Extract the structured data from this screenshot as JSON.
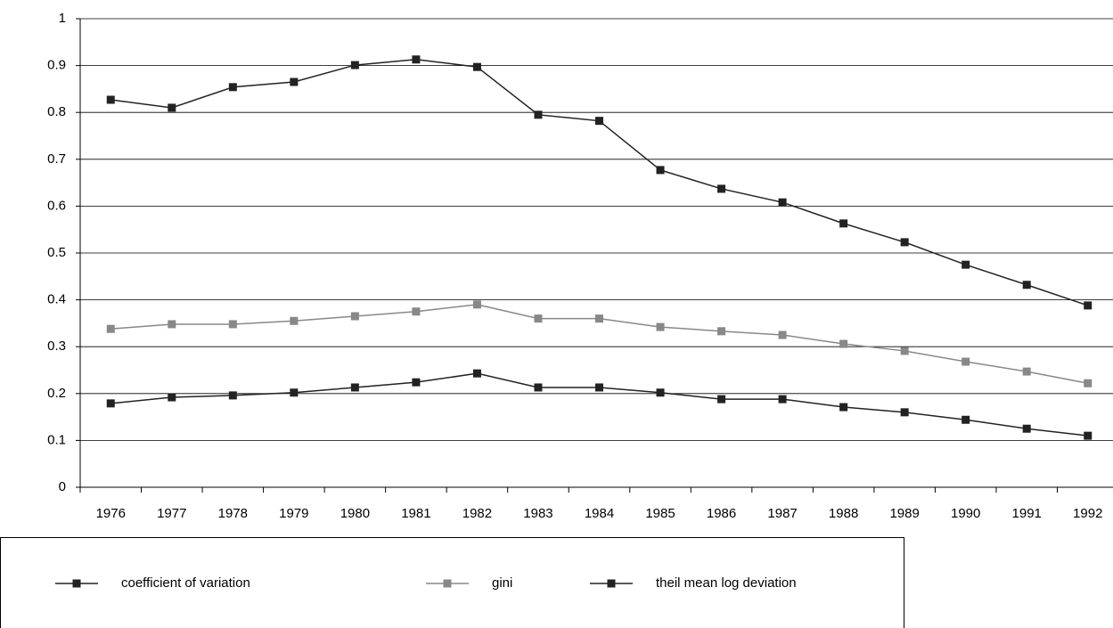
{
  "chart_data": {
    "type": "line",
    "categories": [
      "1976",
      "1977",
      "1978",
      "1979",
      "1980",
      "1981",
      "1982",
      "1983",
      "1984",
      "1985",
      "1986",
      "1987",
      "1988",
      "1989",
      "1990",
      "1991",
      "1992"
    ],
    "series": [
      {
        "name": "coefficient of variation",
        "color": "#222222",
        "values": [
          0.827,
          0.81,
          0.854,
          0.865,
          0.901,
          0.913,
          0.897,
          0.795,
          0.782,
          0.677,
          0.637,
          0.608,
          0.563,
          0.523,
          0.475,
          0.432,
          0.388
        ]
      },
      {
        "name": "gini",
        "color": "#888888",
        "values": [
          0.338,
          0.348,
          0.348,
          0.355,
          0.365,
          0.375,
          0.39,
          0.36,
          0.36,
          0.342,
          0.333,
          0.325,
          0.306,
          0.291,
          0.268,
          0.247,
          0.222
        ]
      },
      {
        "name": "theil mean log deviation",
        "color": "#222222",
        "values": [
          0.179,
          0.192,
          0.196,
          0.202,
          0.213,
          0.224,
          0.243,
          0.213,
          0.213,
          0.202,
          0.188,
          0.188,
          0.171,
          0.16,
          0.144,
          0.125,
          0.11
        ]
      }
    ],
    "ylim": [
      0,
      1
    ],
    "yticks": [
      0,
      0.1,
      0.2,
      0.3,
      0.4,
      0.5,
      0.6,
      0.7,
      0.8,
      0.9,
      1
    ],
    "grid": true
  }
}
